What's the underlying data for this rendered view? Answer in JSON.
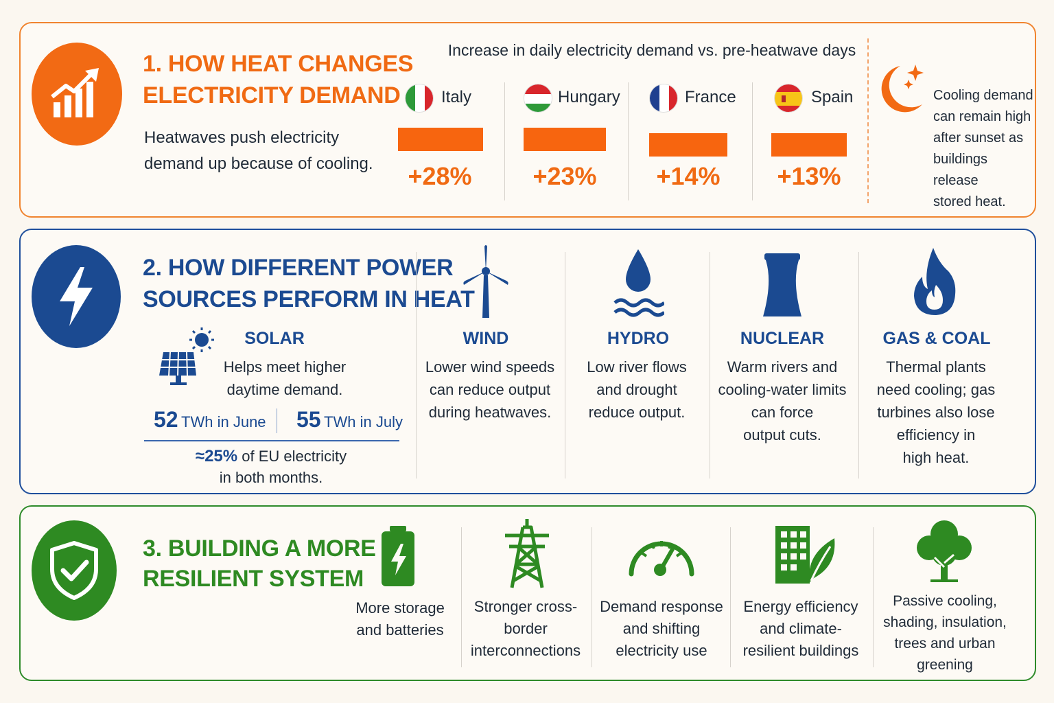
{
  "section1": {
    "title_line1": "1. HOW HEAT CHANGES",
    "title_line2": "ELECTRICITY DEMAND",
    "desc_line1": "Heatwaves push electricity",
    "desc_line2": "demand up because of cooling.",
    "chart_title": "Increase in daily electricity demand vs. pre-heatwave days",
    "countries": [
      {
        "name": "Italy",
        "label": "+28%",
        "value": 28
      },
      {
        "name": "Hungary",
        "label": "+23%",
        "value": 23
      },
      {
        "name": "France",
        "label": "+14%",
        "value": 14
      },
      {
        "name": "Spain",
        "label": "+13%",
        "value": 13
      }
    ],
    "note_lines": [
      "Cooling demand",
      "can remain high",
      "after sunset as",
      "buildings release",
      "stored heat."
    ]
  },
  "chart_data": {
    "type": "bar",
    "title": "Increase in daily electricity demand vs. pre-heatwave days",
    "categories": [
      "Italy",
      "Hungary",
      "France",
      "Spain"
    ],
    "values": [
      28,
      23,
      14,
      13
    ],
    "unit": "%"
  },
  "section2": {
    "title_line1": "2. HOW DIFFERENT POWER",
    "title_line2": "SOURCES PERFORM IN HEAT",
    "solar": {
      "title": "SOLAR",
      "text_line1": "Helps meet higher",
      "text_line2": "daytime demand.",
      "june_value": "52",
      "june_unit": "TWh in June",
      "july_value": "55",
      "july_unit": "TWh in July",
      "share_value": "≈25%",
      "share_line1": "of EU electricity",
      "share_line2": "in both months."
    },
    "sources": [
      {
        "title": "WIND",
        "lines": [
          "Lower wind speeds",
          "can reduce output",
          "during heatwaves."
        ]
      },
      {
        "title": "HYDRO",
        "lines": [
          "Low river flows",
          "and drought",
          "reduce output."
        ]
      },
      {
        "title": "NUCLEAR",
        "lines": [
          "Warm rivers and",
          "cooling-water limits",
          "can force",
          "output cuts."
        ]
      },
      {
        "title": "GAS & COAL",
        "lines": [
          "Thermal plants",
          "need cooling; gas",
          "turbines also lose",
          "efficiency in",
          "high heat."
        ]
      }
    ]
  },
  "section3": {
    "title_line1": "3. BUILDING A MORE",
    "title_line2": "RESILIENT SYSTEM",
    "items": [
      {
        "lines": [
          "More storage",
          "and batteries"
        ]
      },
      {
        "lines": [
          "Stronger cross-",
          "border",
          "interconnections"
        ]
      },
      {
        "lines": [
          "Demand response",
          "and shifting",
          "electricity use"
        ]
      },
      {
        "lines": [
          "Energy efficiency",
          "and climate-",
          "resilient buildings"
        ]
      },
      {
        "lines": [
          "Passive cooling,",
          "shading, insulation,",
          "trees and urban",
          "greening"
        ]
      }
    ]
  },
  "colors": {
    "orange": "#f06a13",
    "blue": "#1b4a91",
    "green": "#2e8a22"
  }
}
